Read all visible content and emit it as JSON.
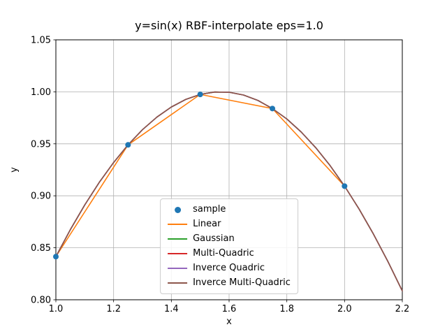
{
  "figure": {
    "background": "#ffffff"
  },
  "chart_data": {
    "type": "line",
    "title": "y=sin(x) RBF-interpolate eps=1.0",
    "xlabel": "x",
    "ylabel": "y",
    "xlim": [
      1.0,
      2.2
    ],
    "ylim": [
      0.8,
      1.05
    ],
    "grid": true,
    "grid_color": "#b0b0b0",
    "xticks": [
      1.0,
      1.2,
      1.4,
      1.6,
      1.8,
      2.0,
      2.2
    ],
    "xtick_labels": [
      "1.0",
      "1.2",
      "1.4",
      "1.6",
      "1.8",
      "2.0",
      "2.2"
    ],
    "yticks": [
      0.8,
      0.85,
      0.9,
      0.95,
      1.0,
      1.05
    ],
    "ytick_labels": [
      "0.80",
      "0.85",
      "0.90",
      "0.95",
      "1.00",
      "1.05"
    ],
    "legend_position": "lower center",
    "sample": {
      "name": "sample",
      "color": "#1f77b4",
      "x": [
        1.0,
        1.25,
        1.5,
        1.75,
        2.0
      ],
      "y": [
        0.8415,
        0.949,
        0.9975,
        0.9839,
        0.9093
      ]
    },
    "smooth_x": [
      1.0,
      1.05,
      1.1,
      1.15,
      1.2,
      1.25,
      1.3,
      1.35,
      1.4,
      1.45,
      1.5,
      1.55,
      1.6,
      1.65,
      1.7,
      1.75,
      1.8,
      1.85,
      1.9,
      1.95,
      2.0,
      2.05,
      2.1,
      2.15,
      2.2
    ],
    "series": [
      {
        "name": "Linear",
        "color": "#ff7f0e",
        "kind": "segments",
        "x": [
          1.0,
          1.25,
          1.5,
          1.75,
          2.0
        ],
        "y": [
          0.8415,
          0.949,
          0.9975,
          0.9839,
          0.9093
        ]
      },
      {
        "name": "Gaussian",
        "color": "#2ca02c",
        "kind": "smooth",
        "y": [
          0.8415,
          0.8674,
          0.8912,
          0.9128,
          0.932,
          0.949,
          0.9636,
          0.9757,
          0.9854,
          0.9927,
          0.9975,
          0.9998,
          0.9996,
          0.9969,
          0.9917,
          0.9839,
          0.9739,
          0.9613,
          0.9463,
          0.929,
          0.9093,
          0.8874,
          0.8632,
          0.8369,
          0.8085
        ]
      },
      {
        "name": "Multi-Quadric",
        "color": "#d62728",
        "kind": "smooth",
        "y": [
          0.8415,
          0.8674,
          0.8912,
          0.9128,
          0.932,
          0.949,
          0.9636,
          0.9757,
          0.9854,
          0.9927,
          0.9975,
          0.9998,
          0.9996,
          0.9969,
          0.9917,
          0.9839,
          0.9739,
          0.9613,
          0.9463,
          0.929,
          0.9093,
          0.8874,
          0.8632,
          0.8369,
          0.8085
        ]
      },
      {
        "name": "Inverce Quadric",
        "color": "#9467bd",
        "kind": "smooth",
        "y": [
          0.8415,
          0.8674,
          0.8912,
          0.9128,
          0.932,
          0.949,
          0.9636,
          0.9757,
          0.9854,
          0.9927,
          0.9975,
          0.9998,
          0.9996,
          0.9969,
          0.9917,
          0.9839,
          0.9739,
          0.9613,
          0.9463,
          0.929,
          0.9093,
          0.8874,
          0.8632,
          0.8369,
          0.8085
        ]
      },
      {
        "name": "Inverce Multi-Quadric",
        "color": "#8c564b",
        "kind": "smooth",
        "y": [
          0.8415,
          0.8674,
          0.8912,
          0.9128,
          0.932,
          0.949,
          0.9636,
          0.9757,
          0.9854,
          0.9927,
          0.9975,
          0.9998,
          0.9996,
          0.9969,
          0.9917,
          0.9839,
          0.9739,
          0.9613,
          0.9463,
          0.929,
          0.9093,
          0.8874,
          0.8632,
          0.8369,
          0.8085
        ]
      }
    ],
    "legend": {
      "entries": [
        {
          "label": "sample",
          "color": "#1f77b4",
          "marker": "dot"
        },
        {
          "label": "Linear",
          "color": "#ff7f0e",
          "marker": "line"
        },
        {
          "label": "Gaussian",
          "color": "#2ca02c",
          "marker": "line"
        },
        {
          "label": "Multi-Quadric",
          "color": "#d62728",
          "marker": "line"
        },
        {
          "label": "Inverce Quadric",
          "color": "#9467bd",
          "marker": "line"
        },
        {
          "label": "Inverce Multi-Quadric",
          "color": "#8c564b",
          "marker": "line"
        }
      ]
    }
  }
}
